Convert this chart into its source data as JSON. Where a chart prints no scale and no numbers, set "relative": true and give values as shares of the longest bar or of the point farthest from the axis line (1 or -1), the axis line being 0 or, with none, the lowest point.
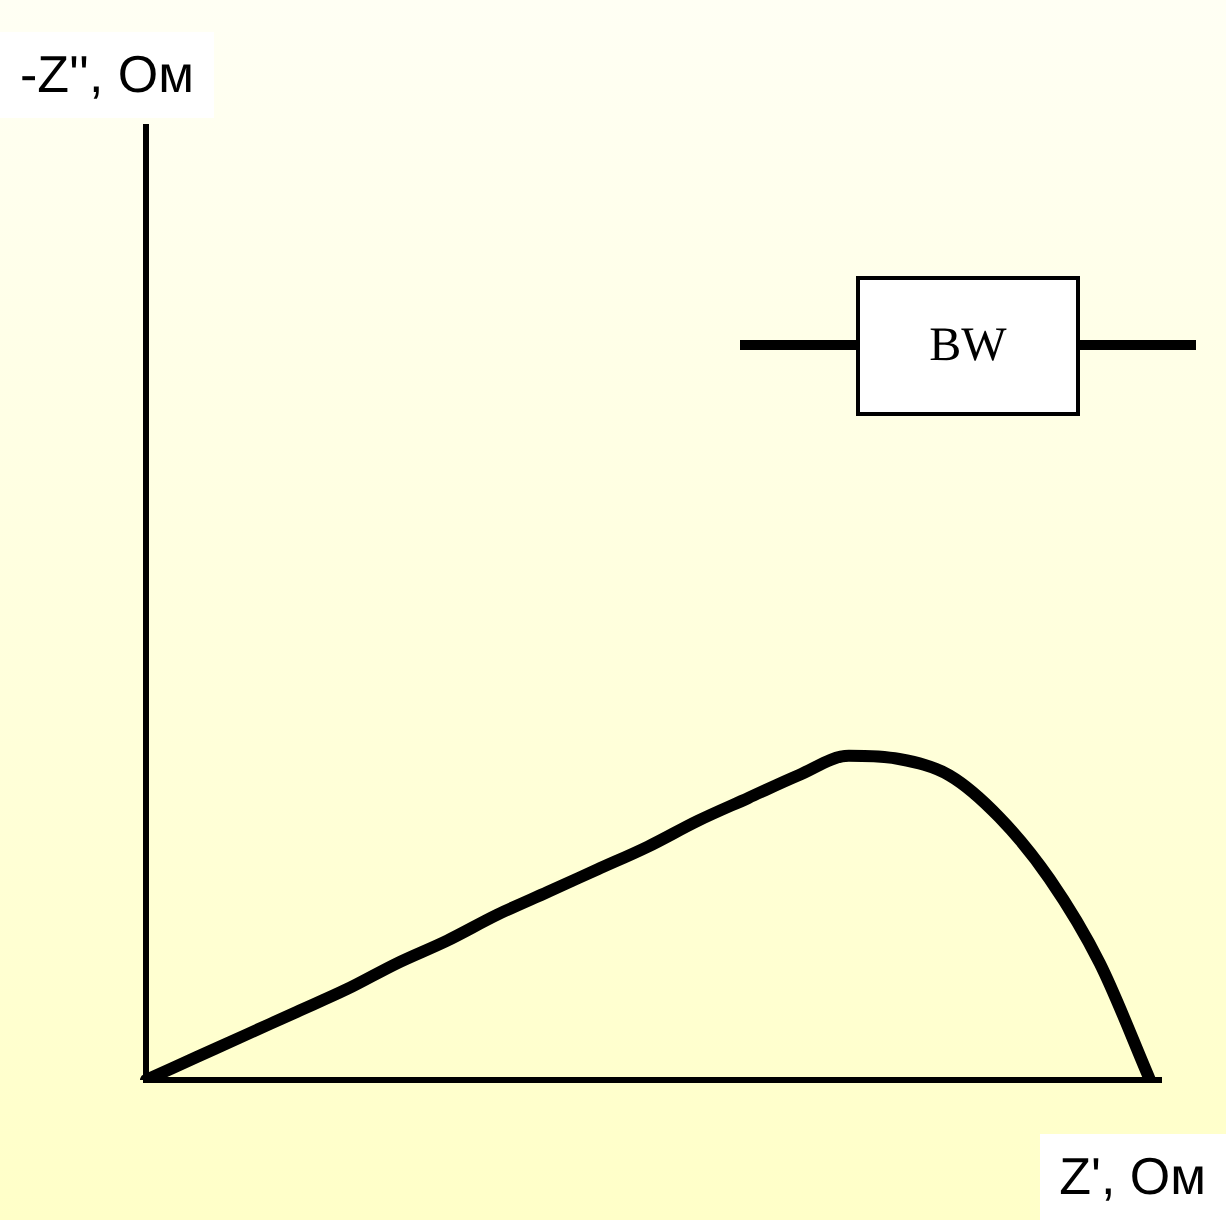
{
  "chart_data": {
    "type": "line",
    "relative": true,
    "xlabel": "Z', Ом",
    "annotations": [
      "-Z'', Ом",
      "BW"
    ],
    "categories": [
      null,
      null,
      null,
      null,
      null,
      null,
      null,
      null,
      null,
      null,
      null,
      null,
      null,
      null,
      null,
      null,
      null,
      null,
      null,
      null,
      null
    ],
    "series": [
      {
        "color": "#000000",
        "values": [
          0,
          0.07,
          0.14,
          0.21,
          0.28,
          0.36,
          0.43,
          0.51,
          0.58,
          0.65,
          0.72,
          0.8,
          0.87,
          0.94,
          1,
          0.99,
          0.94,
          0.81,
          0.62,
          0.36,
          0
        ]
      }
    ]
  }
}
